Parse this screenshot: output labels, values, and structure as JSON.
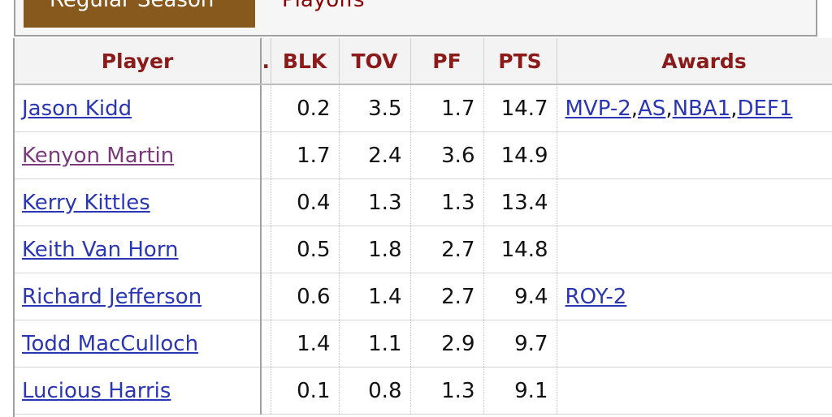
{
  "tabs": {
    "regular": "Regular Season",
    "playoffs": "Playoffs"
  },
  "table": {
    "headers": {
      "player": "Player",
      "clipped": ".",
      "blk": "BLK",
      "tov": "TOV",
      "pf": "PF",
      "pts": "PTS",
      "awards": "Awards"
    },
    "rows": [
      {
        "player": "Jason Kidd",
        "clipped": "",
        "blk": "0.2",
        "tov": "3.5",
        "pf": "1.7",
        "pts": "14.7",
        "awards": [
          "MVP-2",
          "AS",
          "NBA1",
          "DEF1"
        ]
      },
      {
        "player": "Kenyon Martin",
        "clipped": "",
        "blk": "1.7",
        "tov": "2.4",
        "pf": "3.6",
        "pts": "14.9",
        "awards": []
      },
      {
        "player": "Kerry Kittles",
        "clipped": "",
        "blk": "0.4",
        "tov": "1.3",
        "pf": "1.3",
        "pts": "13.4",
        "awards": []
      },
      {
        "player": "Keith Van Horn",
        "clipped": "",
        "blk": "0.5",
        "tov": "1.8",
        "pf": "2.7",
        "pts": "14.8",
        "awards": []
      },
      {
        "player": "Richard Jefferson",
        "clipped": "",
        "blk": "0.6",
        "tov": "1.4",
        "pf": "2.7",
        "pts": "9.4",
        "awards": [
          "ROY-2"
        ]
      },
      {
        "player": "Todd MacCulloch",
        "clipped": "",
        "blk": "1.4",
        "tov": "1.1",
        "pf": "2.9",
        "pts": "9.7",
        "awards": []
      },
      {
        "player": "Lucious Harris",
        "clipped": "",
        "blk": "0.1",
        "tov": "0.8",
        "pf": "1.3",
        "pts": "9.1",
        "awards": []
      }
    ]
  },
  "colors": {
    "tab_active_bg": "#87591c",
    "header_text": "#8b1a1a",
    "link": "#2b36b4",
    "visited_link": "#7a3a7a"
  }
}
